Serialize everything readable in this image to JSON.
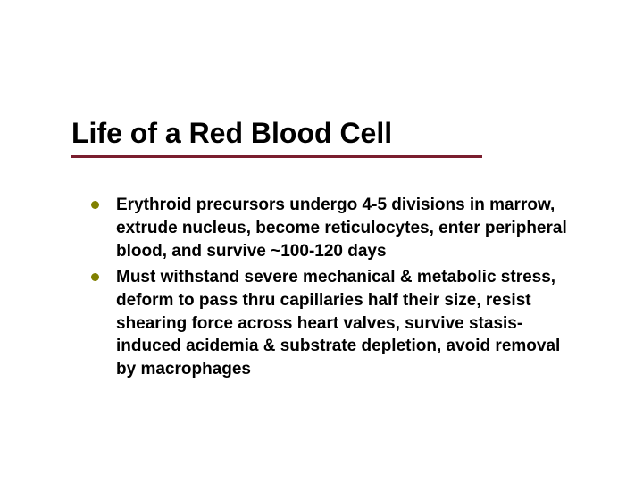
{
  "slide": {
    "title": "Life of a Red Blood Cell",
    "title_color": "#000000",
    "title_fontsize": 32,
    "underline_color": "#7a1e2e",
    "bullet_color": "#808000",
    "body_fontsize": 19,
    "body_color": "#000000",
    "background_color": "#ffffff",
    "bullets": [
      "Erythroid precursors undergo 4-5 divisions in marrow, extrude nucleus, become reticulocytes, enter peripheral blood, and survive ~100-120 days",
      "Must withstand severe mechanical  & metabolic stress, deform to pass thru capillaries half their size, resist shearing force across heart valves, survive stasis-induced acidemia & substrate depletion, avoid removal by macrophages"
    ]
  }
}
